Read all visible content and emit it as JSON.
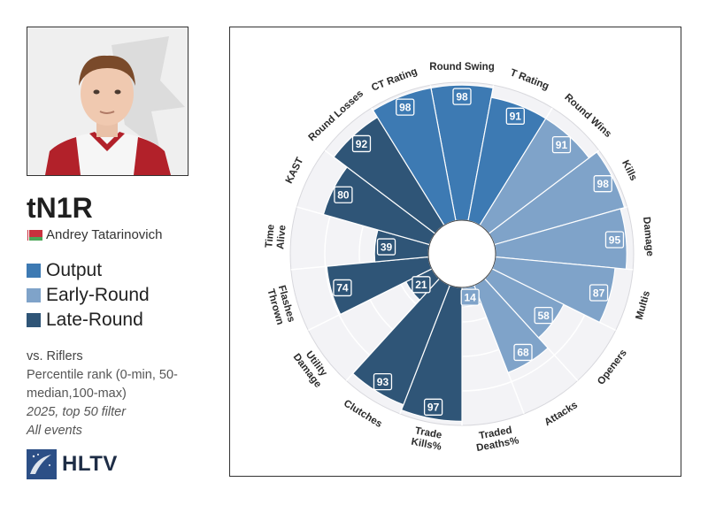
{
  "player": {
    "nickname": "tN1R",
    "real_name": "Andrey Tatarinovich"
  },
  "legend": [
    {
      "label": "Output",
      "color": "#3d7ab3"
    },
    {
      "label": "Early-Round",
      "color": "#7fa3c9"
    },
    {
      "label": "Late-Round",
      "color": "#2f5577"
    }
  ],
  "notes": {
    "line1": "vs. Riflers",
    "line2": "Percentile rank (0-min, 50-median,100-max)",
    "line3": "2025, top 50 filter",
    "line4": "All events"
  },
  "logo": {
    "text": "HLTV"
  },
  "chart_data": {
    "type": "polar-bar",
    "scale": [
      0,
      100
    ],
    "categories": [
      {
        "label": [
          "Round Swing"
        ],
        "value": 98,
        "group": "Output"
      },
      {
        "label": [
          "T Rating"
        ],
        "value": 91,
        "group": "Output"
      },
      {
        "label": [
          "Round Wins"
        ],
        "value": 91,
        "group": "Early-Round"
      },
      {
        "label": [
          "Kills"
        ],
        "value": 98,
        "group": "Early-Round"
      },
      {
        "label": [
          "Damage"
        ],
        "value": 95,
        "group": "Early-Round"
      },
      {
        "label": [
          "Multis"
        ],
        "value": 87,
        "group": "Early-Round"
      },
      {
        "label": [
          "Openers"
        ],
        "value": 58,
        "group": "Early-Round"
      },
      {
        "label": [
          "Attacks"
        ],
        "value": 68,
        "group": "Early-Round"
      },
      {
        "label": [
          "Traded",
          "Deaths%"
        ],
        "value": 14,
        "group": "Early-Round"
      },
      {
        "label": [
          "Trade",
          "Kills%"
        ],
        "value": 97,
        "group": "Late-Round"
      },
      {
        "label": [
          "Clutches"
        ],
        "value": 93,
        "group": "Late-Round"
      },
      {
        "label": [
          "Utility",
          "Damage"
        ],
        "value": 21,
        "group": "Late-Round"
      },
      {
        "label": [
          "Flashes",
          "Thrown"
        ],
        "value": 74,
        "group": "Late-Round"
      },
      {
        "label": [
          "Time",
          "Alive"
        ],
        "value": 39,
        "group": "Late-Round"
      },
      {
        "label": [
          "KAST"
        ],
        "value": 80,
        "group": "Late-Round"
      },
      {
        "label": [
          "Round Losses"
        ],
        "value": 92,
        "group": "Late-Round"
      },
      {
        "label": [
          "CT Rating"
        ],
        "value": 98,
        "group": "Output"
      }
    ]
  }
}
